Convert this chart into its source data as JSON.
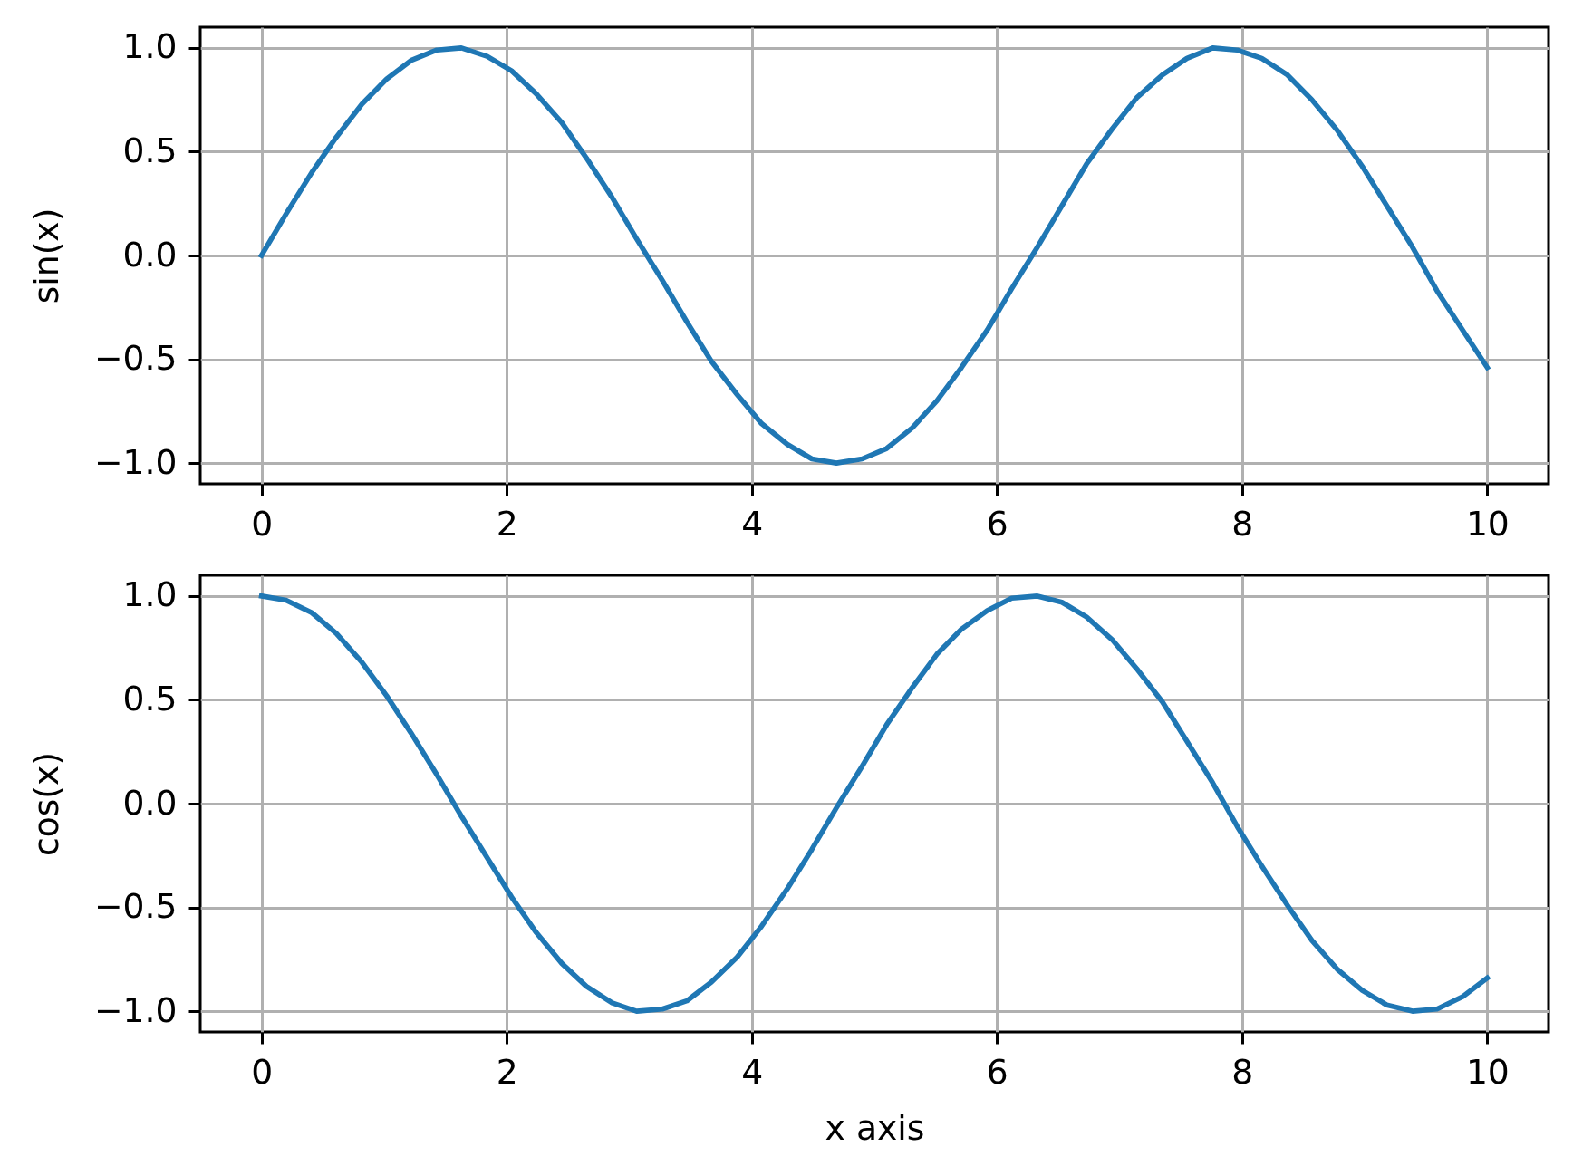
{
  "chart_data": [
    {
      "type": "line",
      "ylabel": "sin(x)",
      "x": [
        0,
        0.2,
        0.41,
        0.61,
        0.82,
        1.02,
        1.22,
        1.43,
        1.63,
        1.84,
        2.04,
        2.24,
        2.45,
        2.65,
        2.86,
        3.06,
        3.27,
        3.47,
        3.67,
        3.88,
        4.08,
        4.29,
        4.49,
        4.69,
        4.9,
        5.1,
        5.31,
        5.51,
        5.71,
        5.92,
        6.12,
        6.33,
        6.53,
        6.73,
        6.94,
        7.14,
        7.35,
        7.55,
        7.76,
        7.96,
        8.16,
        8.37,
        8.57,
        8.78,
        8.98,
        9.18,
        9.39,
        9.59,
        9.8,
        10
      ],
      "series": [
        {
          "color": "#1f77b4",
          "values": [
            0,
            0.2,
            0.4,
            0.57,
            0.73,
            0.85,
            0.94,
            0.99,
            1.0,
            0.96,
            0.89,
            0.78,
            0.64,
            0.47,
            0.28,
            0.08,
            -0.12,
            -0.32,
            -0.51,
            -0.67,
            -0.81,
            -0.91,
            -0.98,
            -1.0,
            -0.98,
            -0.93,
            -0.83,
            -0.7,
            -0.54,
            -0.36,
            -0.16,
            0.04,
            0.24,
            0.44,
            0.61,
            0.76,
            0.87,
            0.95,
            1.0,
            0.99,
            0.95,
            0.87,
            0.75,
            0.6,
            0.43,
            0.24,
            0.04,
            -0.17,
            -0.36,
            -0.54
          ]
        }
      ],
      "xlim": [
        -0.5,
        10.5
      ],
      "xticks": [
        0,
        2,
        4,
        6,
        8,
        10
      ],
      "ylim": [
        -1.1,
        1.1
      ],
      "yticks": [
        {
          "value": -1,
          "label": "−1.0"
        },
        {
          "value": -0.5,
          "label": "−0.5"
        },
        {
          "value": 0,
          "label": "0.0"
        },
        {
          "value": 0.5,
          "label": "0.5"
        },
        {
          "value": 1,
          "label": "1.0"
        }
      ],
      "grid": true
    },
    {
      "type": "line",
      "xlabel": "x axis",
      "ylabel": "cos(x)",
      "x": [
        0,
        0.2,
        0.41,
        0.61,
        0.82,
        1.02,
        1.22,
        1.43,
        1.63,
        1.84,
        2.04,
        2.24,
        2.45,
        2.65,
        2.86,
        3.06,
        3.27,
        3.47,
        3.67,
        3.88,
        4.08,
        4.29,
        4.49,
        4.69,
        4.9,
        5.1,
        5.31,
        5.51,
        5.71,
        5.92,
        6.12,
        6.33,
        6.53,
        6.73,
        6.94,
        7.14,
        7.35,
        7.55,
        7.76,
        7.96,
        8.16,
        8.37,
        8.57,
        8.78,
        8.98,
        9.18,
        9.39,
        9.59,
        9.8,
        10
      ],
      "series": [
        {
          "color": "#1f77b4",
          "values": [
            1.0,
            0.98,
            0.92,
            0.82,
            0.68,
            0.52,
            0.34,
            0.14,
            -0.06,
            -0.26,
            -0.45,
            -0.62,
            -0.77,
            -0.88,
            -0.96,
            -1.0,
            -0.99,
            -0.95,
            -0.86,
            -0.74,
            -0.59,
            -0.41,
            -0.22,
            -0.02,
            0.18,
            0.38,
            0.56,
            0.72,
            0.84,
            0.93,
            0.99,
            1.0,
            0.97,
            0.9,
            0.79,
            0.65,
            0.49,
            0.3,
            0.1,
            -0.11,
            -0.3,
            -0.49,
            -0.66,
            -0.8,
            -0.9,
            -0.97,
            -1.0,
            -0.99,
            -0.93,
            -0.84
          ]
        }
      ],
      "xlim": [
        -0.5,
        10.5
      ],
      "xticks": [
        0,
        2,
        4,
        6,
        8,
        10
      ],
      "ylim": [
        -1.1,
        1.1
      ],
      "yticks": [
        {
          "value": -1,
          "label": "−1.0"
        },
        {
          "value": -0.5,
          "label": "−0.5"
        },
        {
          "value": 0,
          "label": "0.0"
        },
        {
          "value": 0.5,
          "label": "0.5"
        },
        {
          "value": 1,
          "label": "1.0"
        }
      ],
      "grid": true
    }
  ]
}
